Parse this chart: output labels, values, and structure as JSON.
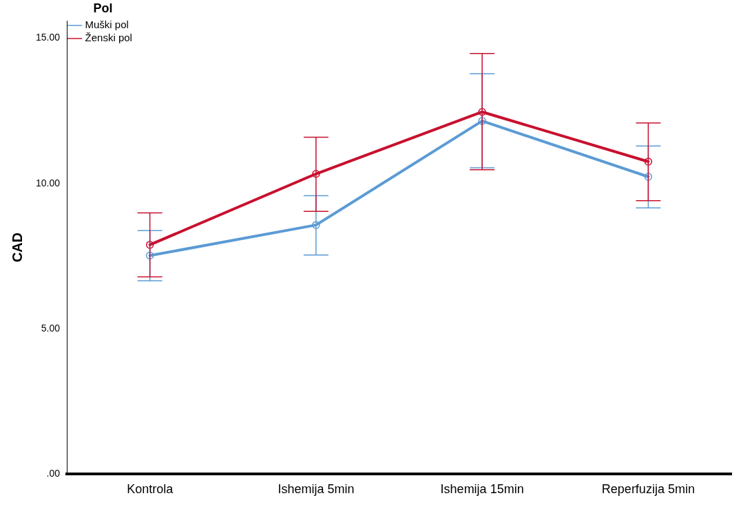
{
  "chart_data": {
    "type": "line",
    "ylabel": "CAD",
    "legend_title": "Pol",
    "legend": "top left",
    "marker": "circle",
    "grid": false,
    "categories": [
      "Kontrola",
      "Ishemija 5min",
      "Ishemija 15min",
      "Reperfuzija 5min"
    ],
    "ylim": [
      0,
      15.6
    ],
    "yticks": [
      {
        "value": 0,
        "label": ".00"
      },
      {
        "value": 5,
        "label": "5.00"
      },
      {
        "value": 10,
        "label": "10.00"
      },
      {
        "value": 15,
        "label": "15.00"
      }
    ],
    "series": [
      {
        "name": "Muški pol",
        "color": "#5b9bd5",
        "values": [
          7.52,
          8.57,
          12.15,
          10.23
        ],
        "errors": [
          [
            6.65,
            8.38
          ],
          [
            7.54,
            9.58
          ],
          [
            10.54,
            13.77
          ],
          [
            9.16,
            11.29
          ]
        ]
      },
      {
        "name": "Ženski pol",
        "color": "#c8102e",
        "values": [
          7.89,
          10.33,
          12.46,
          10.75
        ],
        "errors": [
          [
            6.79,
            8.99
          ],
          [
            9.04,
            11.59
          ],
          [
            10.47,
            14.47
          ],
          [
            9.41,
            12.08
          ]
        ]
      }
    ]
  }
}
